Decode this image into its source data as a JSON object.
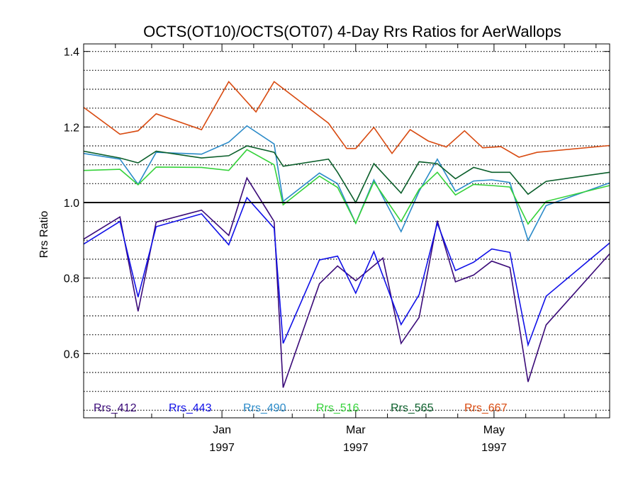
{
  "chart_data": {
    "type": "line",
    "title": "OCTS(OT10)/OCTS(OT07) 4-Day Rrs Ratios for AerWallops",
    "xlabel": "",
    "ylabel": "Rrs Ratio",
    "xlim": [
      "1996-11-01",
      "1997-06-21"
    ],
    "ylim": [
      0.43,
      1.42
    ],
    "yticks": [
      "0.6",
      "0.8",
      "1.0",
      "1.2",
      "1.4"
    ],
    "xticks": [
      {
        "date": "1997-01-01",
        "label1": "Jan",
        "label2": "1997"
      },
      {
        "date": "1997-03-01",
        "label1": "Mar",
        "label2": "1997"
      },
      {
        "date": "1997-05-01",
        "label1": "May",
        "label2": "1997"
      }
    ],
    "grid": "horizontal dotted",
    "reference_line": 1.0,
    "legend_position": "bottom",
    "series": [
      {
        "name": "Rrs_412",
        "color": "#3a0a78",
        "x": [
          "1996-11-01",
          "1996-11-17",
          "1996-11-25",
          "1996-12-03",
          "1996-12-23",
          "1997-01-04",
          "1997-01-12",
          "1997-01-24",
          "1997-01-28",
          "1997-02-13",
          "1997-02-21",
          "1997-03-01",
          "1997-03-13",
          "1997-03-21",
          "1997-03-29",
          "1997-04-06",
          "1997-04-14",
          "1997-04-22",
          "1997-04-30",
          "1997-05-08",
          "1997-05-16",
          "1997-05-24",
          "1997-06-21"
        ],
        "y": [
          0.903,
          0.962,
          0.712,
          0.948,
          0.98,
          0.913,
          1.065,
          0.95,
          0.51,
          0.785,
          0.832,
          0.793,
          0.853,
          0.627,
          0.696,
          0.952,
          0.79,
          0.808,
          0.845,
          0.828,
          0.525,
          0.676,
          0.864
        ]
      },
      {
        "name": "Rrs_443",
        "color": "#1010e8",
        "x": [
          "1996-11-01",
          "1996-11-17",
          "1996-11-25",
          "1996-12-03",
          "1996-12-23",
          "1997-01-04",
          "1997-01-12",
          "1997-01-24",
          "1997-01-28",
          "1997-02-13",
          "1997-02-21",
          "1997-03-01",
          "1997-03-09",
          "1997-03-21",
          "1997-03-29",
          "1997-04-06",
          "1997-04-14",
          "1997-04-22",
          "1997-04-30",
          "1997-05-08",
          "1997-05-16",
          "1997-05-24",
          "1997-06-21"
        ],
        "y": [
          0.89,
          0.95,
          0.75,
          0.936,
          0.97,
          0.888,
          1.013,
          0.932,
          0.627,
          0.848,
          0.858,
          0.76,
          0.87,
          0.677,
          0.756,
          0.945,
          0.82,
          0.842,
          0.877,
          0.868,
          0.623,
          0.752,
          0.893
        ]
      },
      {
        "name": "Rrs_490",
        "color": "#2a8ac8",
        "x": [
          "1996-11-01",
          "1996-11-17",
          "1996-11-25",
          "1996-12-03",
          "1996-12-23",
          "1997-01-04",
          "1997-01-12",
          "1997-01-24",
          "1997-01-28",
          "1997-02-13",
          "1997-02-21",
          "1997-03-01",
          "1997-03-09",
          "1997-03-21",
          "1997-03-29",
          "1997-04-06",
          "1997-04-14",
          "1997-04-22",
          "1997-04-30",
          "1997-05-08",
          "1997-05-16",
          "1997-05-24",
          "1997-06-21"
        ],
        "y": [
          1.13,
          1.115,
          1.048,
          1.133,
          1.128,
          1.16,
          1.203,
          1.155,
          1.003,
          1.078,
          1.05,
          0.945,
          1.06,
          0.923,
          1.03,
          1.115,
          1.03,
          1.057,
          1.06,
          1.053,
          0.9,
          0.992,
          1.052
        ]
      },
      {
        "name": "Rrs_516",
        "color": "#35d23a",
        "x": [
          "1996-11-01",
          "1996-11-17",
          "1996-11-25",
          "1996-12-03",
          "1996-12-23",
          "1997-01-04",
          "1997-01-12",
          "1997-01-24",
          "1997-01-28",
          "1997-02-13",
          "1997-02-21",
          "1997-03-01",
          "1997-03-09",
          "1997-03-21",
          "1997-03-29",
          "1997-04-06",
          "1997-04-14",
          "1997-04-22",
          "1997-04-30",
          "1997-05-08",
          "1997-05-16",
          "1997-05-24",
          "1997-06-21"
        ],
        "y": [
          1.085,
          1.088,
          1.047,
          1.094,
          1.093,
          1.085,
          1.14,
          1.1,
          0.994,
          1.07,
          1.04,
          0.945,
          1.055,
          0.95,
          1.035,
          1.08,
          1.02,
          1.048,
          1.045,
          1.041,
          0.943,
          1.003,
          1.045
        ]
      },
      {
        "name": "Rrs_565",
        "color": "#0a5e2a",
        "x": [
          "1996-11-01",
          "1996-11-17",
          "1996-11-25",
          "1996-12-03",
          "1996-12-23",
          "1997-01-04",
          "1997-01-12",
          "1997-01-24",
          "1997-01-28",
          "1997-02-17",
          "1997-02-21",
          "1997-03-01",
          "1997-03-09",
          "1997-03-21",
          "1997-03-29",
          "1997-04-06",
          "1997-04-14",
          "1997-04-22",
          "1997-04-30",
          "1997-05-08",
          "1997-05-16",
          "1997-05-24",
          "1997-06-21"
        ],
        "y": [
          1.136,
          1.118,
          1.105,
          1.136,
          1.118,
          1.124,
          1.15,
          1.133,
          1.096,
          1.115,
          1.08,
          1.0,
          1.103,
          1.025,
          1.108,
          1.103,
          1.063,
          1.093,
          1.08,
          1.08,
          1.022,
          1.056,
          1.08
        ]
      },
      {
        "name": "Rrs_667",
        "color": "#d84a10",
        "x": [
          "1996-11-01",
          "1996-11-17",
          "1996-11-25",
          "1996-12-03",
          "1996-12-23",
          "1997-01-04",
          "1997-01-16",
          "1997-01-24",
          "1997-02-17",
          "1997-02-25",
          "1997-03-01",
          "1997-03-09",
          "1997-03-17",
          "1997-03-25",
          "1997-04-02",
          "1997-04-10",
          "1997-04-18",
          "1997-04-26",
          "1997-05-04",
          "1997-05-12",
          "1997-05-20",
          "1997-06-21"
        ],
        "y": [
          1.252,
          1.181,
          1.19,
          1.235,
          1.193,
          1.32,
          1.24,
          1.32,
          1.21,
          1.143,
          1.143,
          1.199,
          1.13,
          1.193,
          1.163,
          1.147,
          1.19,
          1.145,
          1.148,
          1.12,
          1.133,
          1.151
        ]
      }
    ]
  }
}
